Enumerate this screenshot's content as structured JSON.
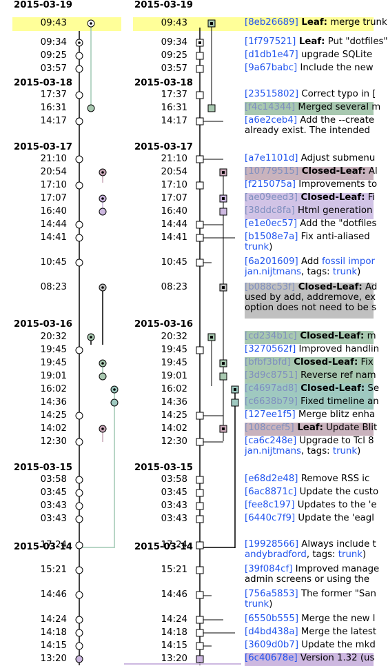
{
  "panel_left": {
    "dates": [
      "2015-03-19",
      "2015-03-18",
      "2015-03-17",
      "2015-03-16",
      "2015-03-15",
      "2015-03-14"
    ],
    "times": [
      "09:43",
      "09:34",
      "09:25",
      "03:57",
      "17:37",
      "16:31",
      "14:17",
      "21:10",
      "20:54",
      "17:10",
      "17:07",
      "16:40",
      "14:44",
      "14:41",
      "10:45",
      "08:23",
      "20:32",
      "19:45",
      "19:45",
      "19:01",
      "16:02",
      "14:36",
      "14:25",
      "14:02",
      "12:30",
      "03:58",
      "03:45",
      "03:43",
      "03:43",
      "17:24",
      "15:21",
      "14:46",
      "14:24",
      "14:18",
      "14:15",
      "13:20"
    ]
  },
  "panel_right": {
    "dates": [
      "2015-03-19",
      "2015-03-18",
      "2015-03-17",
      "2015-03-16",
      "2015-03-15",
      "2015-03-14"
    ],
    "times": [
      "09:43",
      "09:34",
      "09:25",
      "03:57",
      "17:37",
      "16:31",
      "14:17",
      "21:10",
      "20:54",
      "17:10",
      "17:07",
      "16:40",
      "14:44",
      "14:41",
      "10:45",
      "08:23",
      "20:32",
      "19:45",
      "19:45",
      "19:01",
      "16:02",
      "14:36",
      "14:25",
      "14:02",
      "12:30",
      "03:58",
      "03:45",
      "03:43",
      "03:43",
      "17:24",
      "15:21",
      "14:46",
      "14:24",
      "14:18",
      "14:15",
      "13:20"
    ]
  },
  "entries": [
    {
      "hash": "[8eb26689]",
      "leaf": "Leaf:",
      "text": " merge trunk"
    },
    {
      "hash": "[1f797521]",
      "leaf": "Leaf:",
      "text": " Put \"dotfiles\""
    },
    {
      "hash": "[d1db1e47]",
      "text": " upgrade SQLite"
    },
    {
      "hash": "[9a67babc]",
      "text": " Include the new"
    },
    {
      "hash": "[23515802]",
      "text": " Correct typo in ["
    },
    {
      "hash": "[f4c14344]",
      "text": " Merged several m"
    },
    {
      "hash": "[a6e2ceb4]",
      "text": " Add the --create",
      "line2": "already exist. The intended"
    },
    {
      "hash": "[a7e1101d]",
      "text": " Adjust submenu"
    },
    {
      "hash": "[10779515]",
      "leaf": "Closed-Leaf:",
      "text": " Al"
    },
    {
      "hash": "[f215075a]",
      "text": " Improvements to"
    },
    {
      "hash": "[ae09eed3]",
      "leaf": "Closed-Leaf:",
      "text": " Fi"
    },
    {
      "hash": "[38ddc8fa]",
      "text": " Html generation"
    },
    {
      "hash": "[e1e0ec57]",
      "text": " Add the \"dotfiles"
    },
    {
      "hash": "[b1508e7a]",
      "text": " Fix anti-aliased",
      "line2a": "trunk",
      "line2b": ")"
    },
    {
      "hash": "[6a201609]",
      "text": " Add ",
      "link": "fossil impor",
      "line2a": "jan.nijtmans",
      "line2b": ", tags: ",
      "line2c": "trunk",
      "line2d": ")"
    },
    {
      "hash": "[b088c53f]",
      "leaf": "Closed-Leaf:",
      "text": " Ad",
      "line2": "used by add, addremove, ex",
      "line3": "option does not need to be s"
    },
    {
      "hash": "[cd234b1c]",
      "leaf": "Closed-Leaf:",
      "text": " m"
    },
    {
      "hash": "[3270562f]",
      "text": " Improved handlin"
    },
    {
      "hash": "[bfbf3bfd]",
      "leaf": "Closed-Leaf:",
      "text": " Fix"
    },
    {
      "hash": "[3d9c8751]",
      "text": " Reverse ref nam"
    },
    {
      "hash": "[c4697ad8]",
      "leaf": "Closed-Leaf:",
      "text": " Se"
    },
    {
      "hash": "[c6638b79]",
      "text": " Fixed timeline an"
    },
    {
      "hash": "[127ee1f5]",
      "text": " Merge blitz enha"
    },
    {
      "hash": "[108ccef5]",
      "leaf": "Leaf:",
      "text": " Update Blit"
    },
    {
      "hash": "[ca6c248e]",
      "text": " Upgrade to Tcl 8",
      "line2a": "jan.nijtmans",
      "line2b": ", tags: ",
      "line2c": "trunk",
      "line2d": ")"
    },
    {
      "hash": "[e68d2e48]",
      "text": " Remove RSS ic"
    },
    {
      "hash": "[6ac8871c]",
      "text": " Update the custo"
    },
    {
      "hash": "[fee8c197]",
      "text": " Updates to the 'e"
    },
    {
      "hash": "[6440c7f9]",
      "text": " Update the 'eagl"
    },
    {
      "hash": "[19928566]",
      "text": " Always include t",
      "line2a": "andybradford",
      "line2b": ", tags: ",
      "line2c": "trunk",
      "line2d": ")"
    },
    {
      "hash": "[39f084cf]",
      "text": " Improved manage",
      "line2": "admin screens or using the"
    },
    {
      "hash": "[756a5853]",
      "text": " The former \"San",
      "line2a": "trunk",
      "line2b": ")"
    },
    {
      "hash": "[6550b555]",
      "text": " Merge the new l"
    },
    {
      "hash": "[d4bd438a]",
      "text": " Merge the latest"
    },
    {
      "hash": "[3609d0b7]",
      "text": " Update the mkd"
    },
    {
      "hash": "[6c40678e]",
      "text": " Version 1.32 (us"
    }
  ],
  "colors": {
    "highlight": "#ffff99",
    "green": "#9fc9b3",
    "purple": "#cdb8e0",
    "mauve": "#c9a8b8",
    "gray": "#c0c0c0"
  }
}
